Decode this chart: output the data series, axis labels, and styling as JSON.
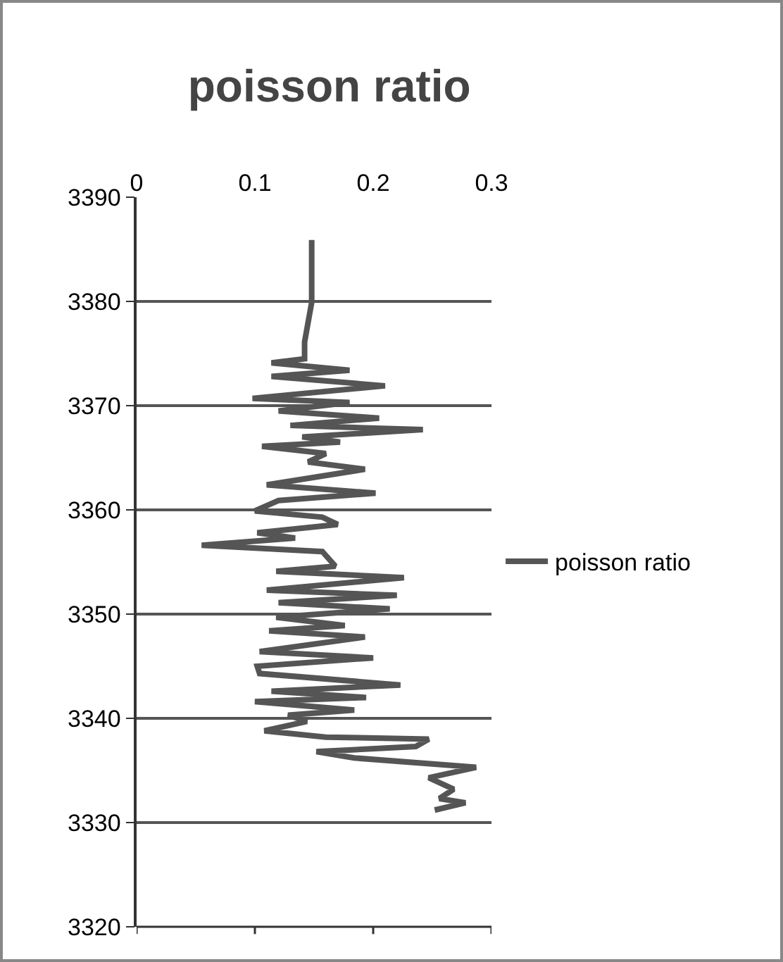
{
  "chart_data": {
    "type": "line",
    "title": "poisson ratio",
    "xlim": [
      0,
      0.3
    ],
    "xticks": [
      0,
      0.1,
      0.2,
      0.3
    ],
    "ylim": [
      3320,
      3390
    ],
    "yticks": [
      3320,
      3330,
      3340,
      3350,
      3360,
      3370,
      3380,
      3390
    ],
    "grid": "y",
    "legend": "right",
    "marker": "none",
    "line_style": "solid",
    "series": [
      {
        "name": "poisson ratio",
        "color": "#555555",
        "x": [
          0.148,
          0.148,
          0.142,
          0.142,
          0.114,
          0.18,
          0.114,
          0.21,
          0.098,
          0.18,
          0.12,
          0.205,
          0.13,
          0.242,
          0.14,
          0.172,
          0.106,
          0.16,
          0.145,
          0.193,
          0.11,
          0.202,
          0.12,
          0.1,
          0.157,
          0.17,
          0.102,
          0.134,
          0.055,
          0.157,
          0.168,
          0.118,
          0.226,
          0.11,
          0.22,
          0.12,
          0.214,
          0.118,
          0.176,
          0.112,
          0.193,
          0.104,
          0.2,
          0.102,
          0.104,
          0.223,
          0.114,
          0.194,
          0.1,
          0.184,
          0.128,
          0.144,
          0.108,
          0.16,
          0.247,
          0.236,
          0.152,
          0.184,
          0.287,
          0.247,
          0.268,
          0.256,
          0.278,
          0.252
        ],
        "values": [
          3385.9,
          3379.9,
          3376.1,
          3374.5,
          3374.1,
          3373.4,
          3372.8,
          3371.9,
          3370.7,
          3370.3,
          3369.5,
          3368.8,
          3368.1,
          3367.7,
          3367.0,
          3366.5,
          3366.1,
          3365.4,
          3364.6,
          3363.9,
          3362.4,
          3361.6,
          3360.9,
          3359.9,
          3359.3,
          3358.6,
          3357.8,
          3357.3,
          3356.6,
          3356.0,
          3354.6,
          3354.1,
          3353.5,
          3352.3,
          3351.8,
          3351.1,
          3350.5,
          3349.7,
          3348.9,
          3348.4,
          3347.8,
          3346.4,
          3345.8,
          3345.0,
          3344.3,
          3343.2,
          3342.6,
          3342.0,
          3341.6,
          3340.8,
          3340.3,
          3339.7,
          3338.8,
          3338.2,
          3338.0,
          3337.3,
          3336.8,
          3336.2,
          3335.3,
          3334.3,
          3333.2,
          3332.3,
          3331.9,
          3331.2
        ]
      }
    ]
  }
}
